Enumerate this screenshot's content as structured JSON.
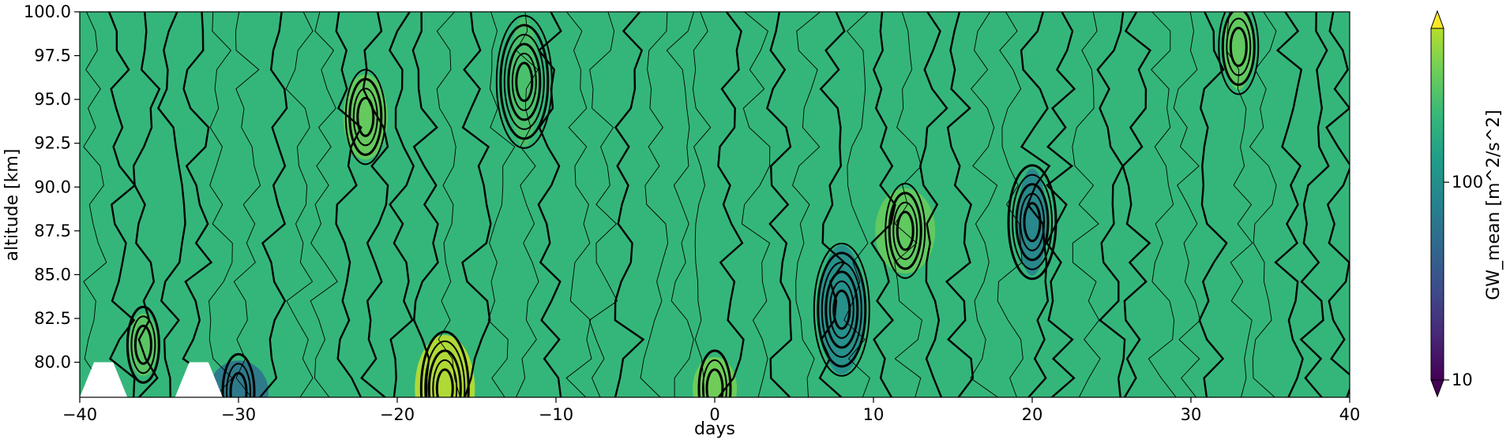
{
  "chart_data": {
    "type": "heatmap",
    "subtype": "filled-contour",
    "xlabel": "days",
    "ylabel": "altitude [km]",
    "xlim": [
      -40,
      40
    ],
    "ylim": [
      78,
      100
    ],
    "xticks": [
      -40,
      -30,
      -20,
      -10,
      0,
      10,
      20,
      30,
      40
    ],
    "xtick_labels": [
      "−40",
      "−30",
      "−20",
      "−10",
      "0",
      "10",
      "20",
      "30",
      "40"
    ],
    "yticks": [
      80.0,
      82.5,
      85.0,
      87.5,
      90.0,
      92.5,
      95.0,
      97.5,
      100.0
    ],
    "ytick_labels": [
      "80.0",
      "82.5",
      "85.0",
      "87.5",
      "90.0",
      "92.5",
      "95.0",
      "97.5",
      "100.0"
    ],
    "colorbar": {
      "label": "GW_mean [m^2/s^2]",
      "scale": "log",
      "range": [
        10,
        600
      ],
      "ticks": [
        10,
        100
      ],
      "tick_labels": [
        "10",
        "100"
      ],
      "extend": "both",
      "colormap": "viridis"
    },
    "background_level": 150,
    "features": [
      {
        "x": -36,
        "y": 81,
        "value": 220
      },
      {
        "x": -22,
        "y": 94,
        "value": 240
      },
      {
        "x": -17,
        "y": 78.5,
        "value": 420
      },
      {
        "x": -12,
        "y": 96,
        "value": 190
      },
      {
        "x": 0,
        "y": 78.5,
        "value": 260
      },
      {
        "x": 12,
        "y": 87.5,
        "value": 230
      },
      {
        "x": 20,
        "y": 88,
        "value": 60
      },
      {
        "x": 8,
        "y": 83,
        "value": 70
      },
      {
        "x": -30,
        "y": 78.3,
        "value": 45
      },
      {
        "x": 33,
        "y": 98,
        "value": 230
      }
    ],
    "masked": [
      {
        "x": [
          -40,
          -37
        ],
        "y": [
          78,
          80
        ]
      },
      {
        "x": [
          -34,
          -31
        ],
        "y": [
          78,
          80
        ]
      }
    ]
  }
}
